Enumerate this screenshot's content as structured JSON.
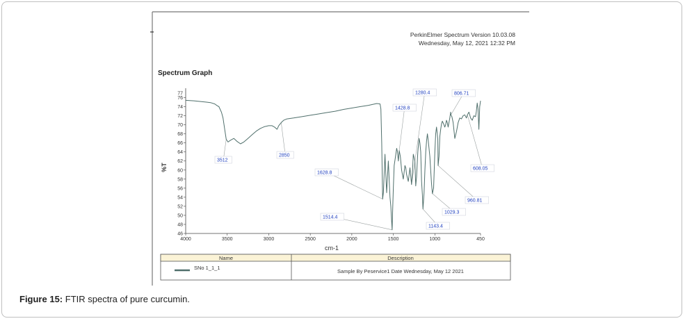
{
  "caption": {
    "label": "Figure 15:",
    "text": "FTIR spectra of pure curcumin."
  },
  "header": {
    "software": "PerkinElmer Spectrum Version 10.03.08",
    "datetime": "Wednesday, May 12, 2021 12:32 PM"
  },
  "legend_table": {
    "headers": [
      "Name",
      "Description"
    ],
    "rows": [
      {
        "name": "SNo 1_1_1",
        "description": "Sample By Peservice1 Date Wednesday, May 12 2021"
      }
    ]
  },
  "colors": {
    "spectrum": "#4f6f6b",
    "annotation_text": "#1f3fbf",
    "leader": "#9aa0a0",
    "table_header_bg": "#fbf3d6"
  },
  "chart_data": {
    "type": "line",
    "title": "Spectrum Graph",
    "xlabel": "cm-1",
    "ylabel": "%T",
    "xlim": [
      4000,
      450
    ],
    "ylim": [
      46,
      77
    ],
    "x_ticks": [
      4000,
      3500,
      3000,
      2500,
      2000,
      1500,
      1000,
      450
    ],
    "y_ticks": [
      46,
      48,
      50,
      52,
      54,
      56,
      58,
      60,
      62,
      64,
      66,
      68,
      70,
      72,
      74,
      76
    ],
    "y_tick_labels_top": "77",
    "series": [
      {
        "name": "SNo 1_1_1",
        "x": [
          4000,
          3900,
          3800,
          3750,
          3700,
          3650,
          3620,
          3600,
          3570,
          3550,
          3530,
          3512,
          3490,
          3460,
          3420,
          3380,
          3340,
          3300,
          3250,
          3200,
          3150,
          3100,
          3050,
          3000,
          2960,
          2930,
          2900,
          2880,
          2850,
          2820,
          2780,
          2700,
          2600,
          2500,
          2400,
          2300,
          2200,
          2100,
          2000,
          1900,
          1800,
          1700,
          1660,
          1650,
          1640,
          1628.8,
          1620,
          1600,
          1590,
          1580,
          1570,
          1560,
          1550,
          1540,
          1530,
          1520,
          1514.4,
          1510,
          1500,
          1490,
          1470,
          1460,
          1450,
          1440,
          1428.8,
          1415,
          1400,
          1380,
          1360,
          1350,
          1340,
          1320,
          1300,
          1280.4,
          1270,
          1260,
          1240,
          1230,
          1220,
          1205,
          1190,
          1180,
          1170,
          1160,
          1150,
          1143.4,
          1130,
          1120,
          1110,
          1100,
          1090,
          1080,
          1060,
          1040,
          1029.3,
          1015,
          1000,
          990,
          980,
          965,
          960.81,
          950,
          940,
          930,
          920,
          910,
          900,
          890,
          880,
          870,
          860,
          850,
          840,
          830,
          820,
          810,
          806.71,
          795,
          780,
          760,
          740,
          720,
          700,
          680,
          660,
          640,
          620,
          608.05,
          590,
          570,
          550,
          530,
          510,
          500,
          490,
          480,
          470,
          460,
          450
        ],
        "y": [
          75.4,
          75.3,
          75.1,
          75.0,
          74.9,
          74.6,
          74.2,
          74.0,
          72.8,
          71.5,
          69.0,
          66.8,
          66.2,
          66.6,
          67.0,
          66.3,
          65.8,
          66.2,
          67.0,
          67.8,
          68.6,
          69.2,
          69.6,
          69.8,
          69.8,
          69.5,
          69.0,
          69.8,
          70.5,
          71.0,
          71.3,
          71.5,
          71.8,
          72.1,
          72.4,
          72.7,
          73.0,
          73.4,
          73.7,
          74.0,
          74.3,
          74.7,
          74.6,
          73.5,
          66.0,
          53.6,
          55.0,
          63.5,
          59.0,
          55.0,
          58.5,
          62.0,
          58.0,
          54.0,
          52.0,
          48.6,
          46.8,
          50.0,
          56.0,
          61.0,
          63.5,
          64.8,
          64.0,
          62.0,
          64.3,
          63.0,
          60.0,
          58.0,
          61.0,
          60.5,
          59.0,
          57.5,
          60.5,
          56.8,
          59.5,
          63.5,
          62.0,
          56.5,
          58.5,
          64.0,
          67.0,
          66.0,
          64.0,
          57.5,
          54.5,
          51.4,
          55.0,
          60.0,
          64.0,
          66.5,
          68.0,
          66.5,
          63.0,
          57.0,
          54.8,
          56.0,
          64.0,
          68.0,
          69.5,
          67.0,
          61.0,
          63.0,
          67.5,
          69.0,
          70.2,
          70.8,
          70.4,
          70.0,
          69.5,
          70.0,
          71.0,
          70.5,
          69.5,
          70.5,
          71.5,
          72.8,
          72.2,
          71.8,
          70.5,
          67.0,
          68.5,
          70.5,
          71.5,
          71.3,
          72.0,
          72.2,
          71.5,
          72.2,
          72.8,
          71.5,
          71.0,
          72.0,
          71.8,
          73.0,
          74.8,
          73.5,
          69.0,
          74.0,
          75.3
        ]
      }
    ],
    "annotations": [
      {
        "label": "3512",
        "x": 3512
      },
      {
        "label": "2850",
        "x": 2850
      },
      {
        "label": "1628.8",
        "x": 1628.8
      },
      {
        "label": "1514.4",
        "x": 1514.4
      },
      {
        "label": "1428.8",
        "x": 1428.8
      },
      {
        "label": "1280.4",
        "x": 1280.4
      },
      {
        "label": "1143.4",
        "x": 1143.4
      },
      {
        "label": "1029.3",
        "x": 1029.3
      },
      {
        "label": "960.81",
        "x": 960.81
      },
      {
        "label": "806.71",
        "x": 806.71
      },
      {
        "label": "608.05",
        "x": 608.05
      }
    ]
  }
}
